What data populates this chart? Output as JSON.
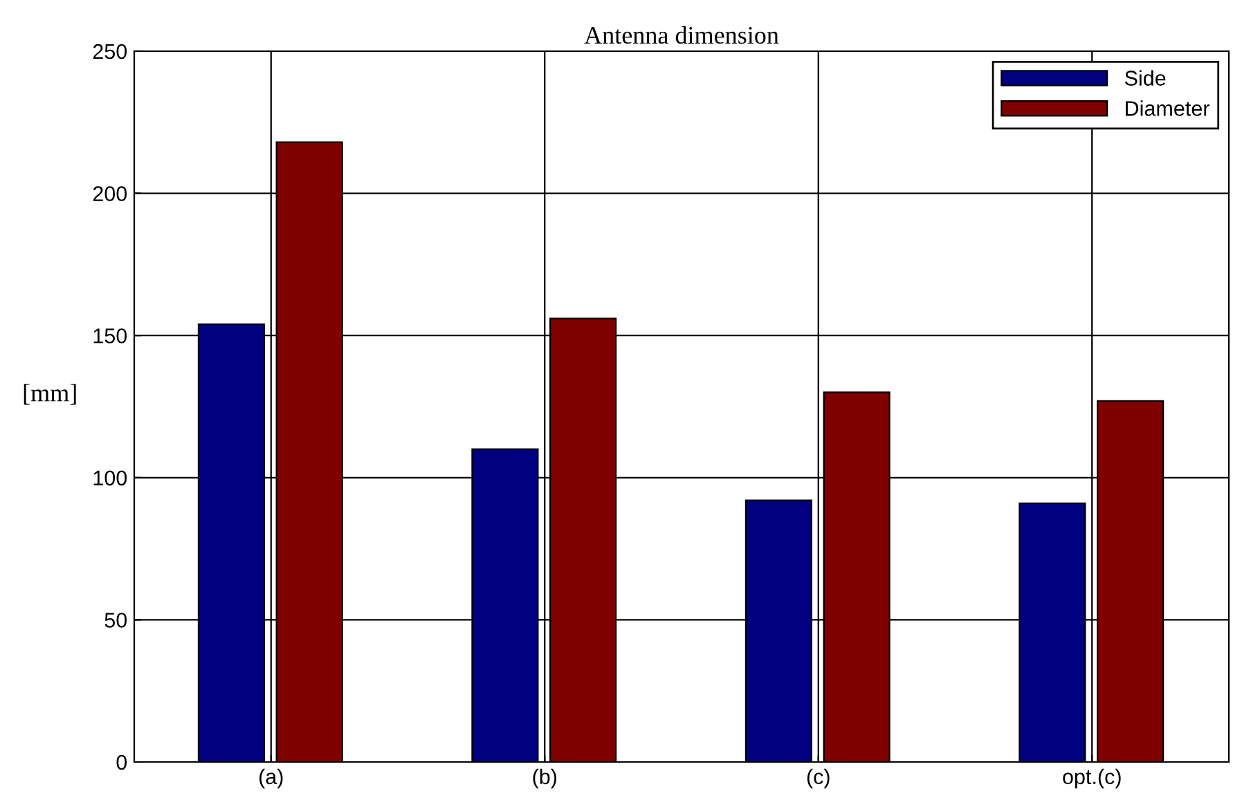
{
  "chart_data": {
    "type": "bar",
    "title": "Antenna dimension",
    "ylabel": "[mm]",
    "categories": [
      "(a)",
      "(b)",
      "(c)",
      "opt.(c)"
    ],
    "series": [
      {
        "name": "Side",
        "color": "#000080",
        "values": [
          154,
          110,
          92,
          91
        ]
      },
      {
        "name": "Diameter",
        "color": "#800000",
        "values": [
          218,
          156,
          130,
          127
        ]
      }
    ],
    "ylim": [
      0,
      250
    ],
    "yticks": [
      0,
      50,
      100,
      150,
      200,
      250
    ],
    "grid": true,
    "legend": "top right"
  }
}
